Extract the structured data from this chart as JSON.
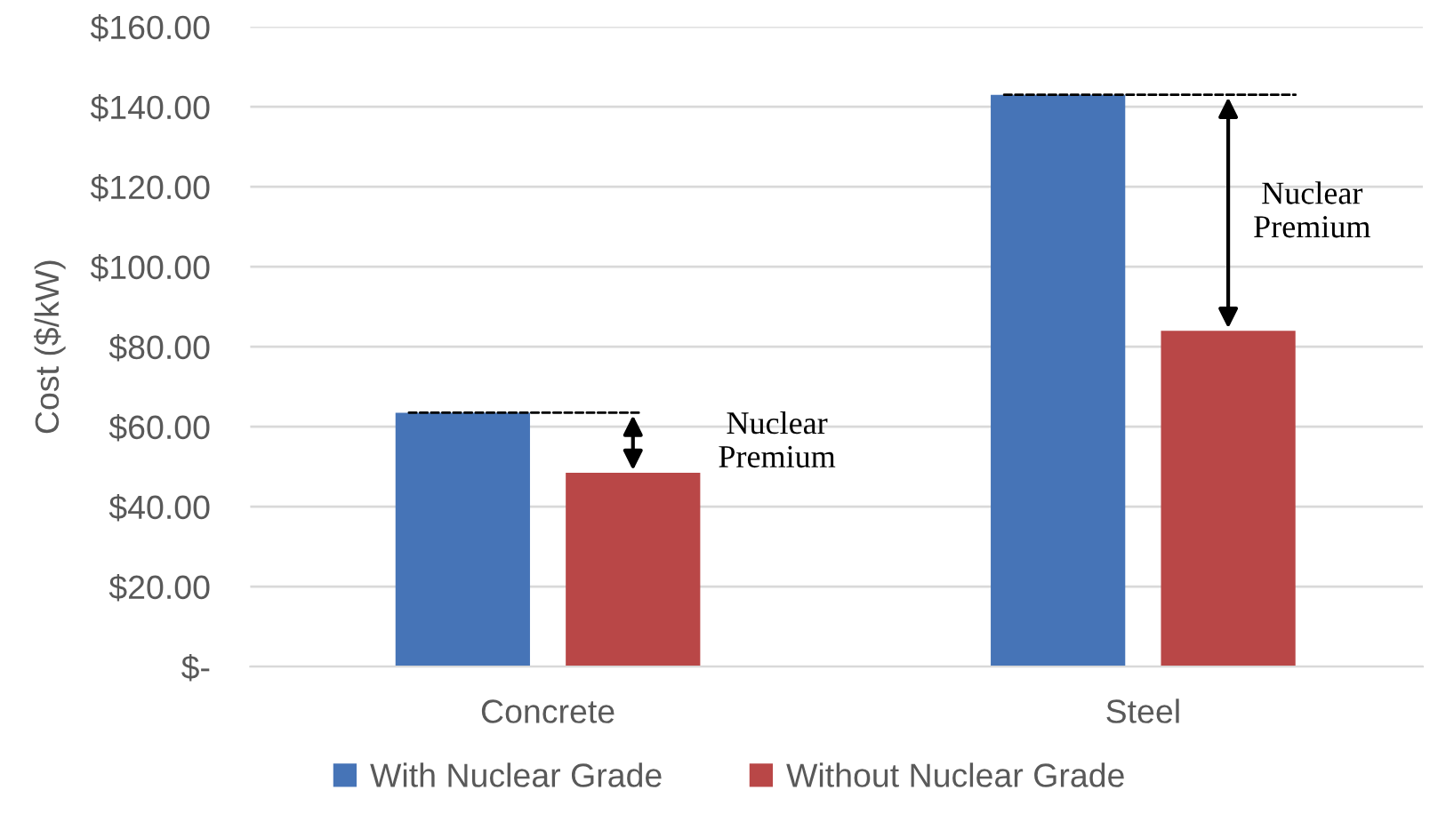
{
  "chart_data": {
    "type": "bar",
    "ylabel": "Cost ($/kW)",
    "categories": [
      "Concrete",
      "Steel"
    ],
    "series": [
      {
        "name": "With Nuclear Grade",
        "color": "#4674b7",
        "values": [
          63.5,
          143
        ]
      },
      {
        "name": "Without Nuclear Grade",
        "color": "#b94747",
        "values": [
          48.5,
          84
        ]
      }
    ],
    "ylim": [
      0,
      160
    ],
    "yticks": [
      {
        "value": 0,
        "label": "$-"
      },
      {
        "value": 20,
        "label": "$20.00"
      },
      {
        "value": 40,
        "label": "$40.00"
      },
      {
        "value": 60,
        "label": "$60.00"
      },
      {
        "value": 80,
        "label": "$80.00"
      },
      {
        "value": 100,
        "label": "$100.00"
      },
      {
        "value": 120,
        "label": "$120.00"
      },
      {
        "value": 140,
        "label": "$140.00"
      },
      {
        "value": 160,
        "label": "$160.00"
      }
    ],
    "grid": "y",
    "legend": "bottom",
    "annotations": [
      "Nuclear\nPremium",
      "Nuclear\nPremium"
    ]
  }
}
